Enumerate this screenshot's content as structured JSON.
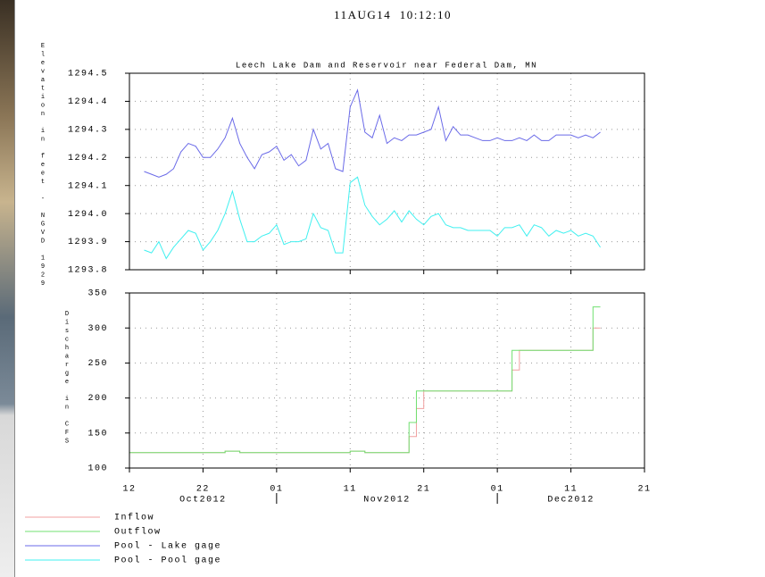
{
  "header": {
    "timestamp": "11AUG14  10:12:10"
  },
  "chart_data": [
    {
      "type": "line",
      "title": "Leech Lake Dam and Reservoir near Federal Dam, MN",
      "y_label": "Elevation in feet - NGVD 1929",
      "x": [
        "2012-10-14",
        "2012-10-15",
        "2012-10-16",
        "2012-10-17",
        "2012-10-18",
        "2012-10-19",
        "2012-10-20",
        "2012-10-21",
        "2012-10-22",
        "2012-10-23",
        "2012-10-24",
        "2012-10-25",
        "2012-10-26",
        "2012-10-27",
        "2012-10-28",
        "2012-10-29",
        "2012-10-30",
        "2012-10-31",
        "2012-11-01",
        "2012-11-02",
        "2012-11-03",
        "2012-11-04",
        "2012-11-05",
        "2012-11-06",
        "2012-11-07",
        "2012-11-08",
        "2012-11-09",
        "2012-11-10",
        "2012-11-11",
        "2012-11-12",
        "2012-11-13",
        "2012-11-14",
        "2012-11-15",
        "2012-11-16",
        "2012-11-17",
        "2012-11-18",
        "2012-11-19",
        "2012-11-20",
        "2012-11-21",
        "2012-11-22",
        "2012-11-23",
        "2012-11-24",
        "2012-11-25",
        "2012-11-26",
        "2012-11-27",
        "2012-11-28",
        "2012-11-29",
        "2012-11-30",
        "2012-12-01",
        "2012-12-02",
        "2012-12-03",
        "2012-12-04",
        "2012-12-05",
        "2012-12-06",
        "2012-12-07",
        "2012-12-08",
        "2012-12-09",
        "2012-12-10",
        "2012-12-11",
        "2012-12-12",
        "2012-12-13",
        "2012-12-14",
        "2012-12-15"
      ],
      "series": [
        {
          "name": "Pool - Lake gage",
          "color": "#6a6ae8",
          "values": [
            1294.15,
            1294.14,
            1294.13,
            1294.14,
            1294.16,
            1294.22,
            1294.25,
            1294.24,
            1294.2,
            1294.2,
            1294.23,
            1294.27,
            1294.34,
            1294.25,
            1294.2,
            1294.16,
            1294.21,
            1294.22,
            1294.24,
            1294.19,
            1294.21,
            1294.17,
            1294.19,
            1294.3,
            1294.23,
            1294.25,
            1294.16,
            1294.15,
            1294.38,
            1294.44,
            1294.29,
            1294.27,
            1294.35,
            1294.25,
            1294.27,
            1294.26,
            1294.28,
            1294.28,
            1294.29,
            1294.3,
            1294.38,
            1294.26,
            1294.31,
            1294.28,
            1294.28,
            1294.27,
            1294.26,
            1294.26,
            1294.27,
            1294.26,
            1294.26,
            1294.27,
            1294.26,
            1294.28,
            1294.26,
            1294.26,
            1294.28,
            1294.28,
            1294.28,
            1294.27,
            1294.28,
            1294.27,
            1294.29
          ]
        },
        {
          "name": "Pool - Pool gage",
          "color": "#40f0f0",
          "values": [
            1293.87,
            1293.86,
            1293.9,
            1293.84,
            1293.88,
            1293.91,
            1293.94,
            1293.93,
            1293.87,
            1293.9,
            1293.94,
            1294.0,
            1294.08,
            1293.98,
            1293.9,
            1293.9,
            1293.92,
            1293.93,
            1293.96,
            1293.89,
            1293.9,
            1293.9,
            1293.91,
            1294.0,
            1293.95,
            1293.94,
            1293.86,
            1293.86,
            1294.11,
            1294.13,
            1294.03,
            1293.99,
            1293.96,
            1293.98,
            1294.01,
            1293.97,
            1294.01,
            1293.98,
            1293.96,
            1293.99,
            1294.0,
            1293.96,
            1293.95,
            1293.95,
            1293.94,
            1293.94,
            1293.94,
            1293.94,
            1293.92,
            1293.95,
            1293.95,
            1293.96,
            1293.92,
            1293.96,
            1293.95,
            1293.92,
            1293.94,
            1293.93,
            1293.94,
            1293.92,
            1293.93,
            1293.92,
            1293.88
          ]
        }
      ],
      "xlim": [
        "2012-10-12",
        "2012-12-21"
      ],
      "xticks": [
        "2012-10-22",
        "2012-11-01",
        "2012-11-11",
        "2012-11-21",
        "2012-12-01",
        "2012-12-11"
      ],
      "ylim": [
        1293.8,
        1294.5
      ],
      "yticks": [
        1293.8,
        {
          "value": 1293.9,
          "label": "1293.9"
        },
        {
          "value": 1294.0,
          "label": "1294.0"
        },
        1294.1,
        1294.2,
        1294.3,
        1294.4,
        1294.5
      ],
      "grid": true
    },
    {
      "type": "step",
      "y_label": "Discharge in CFS",
      "x": [
        "2012-10-12",
        "2012-10-13",
        "2012-10-14",
        "2012-10-15",
        "2012-10-16",
        "2012-10-17",
        "2012-10-18",
        "2012-10-19",
        "2012-10-20",
        "2012-10-21",
        "2012-10-22",
        "2012-10-23",
        "2012-10-24",
        "2012-10-25",
        "2012-10-26",
        "2012-10-27",
        "2012-10-28",
        "2012-10-29",
        "2012-10-30",
        "2012-10-31",
        "2012-11-01",
        "2012-11-02",
        "2012-11-03",
        "2012-11-04",
        "2012-11-05",
        "2012-11-06",
        "2012-11-07",
        "2012-11-08",
        "2012-11-09",
        "2012-11-10",
        "2012-11-11",
        "2012-11-12",
        "2012-11-13",
        "2012-11-14",
        "2012-11-15",
        "2012-11-16",
        "2012-11-17",
        "2012-11-18",
        "2012-11-19",
        "2012-11-20",
        "2012-11-21",
        "2012-11-22",
        "2012-11-23",
        "2012-11-24",
        "2012-11-25",
        "2012-11-26",
        "2012-11-27",
        "2012-11-28",
        "2012-11-29",
        "2012-11-30",
        "2012-12-01",
        "2012-12-02",
        "2012-12-03",
        "2012-12-04",
        "2012-12-05",
        "2012-12-06",
        "2012-12-07",
        "2012-12-08",
        "2012-12-09",
        "2012-12-10",
        "2012-12-11",
        "2012-12-12",
        "2012-12-13",
        "2012-12-14",
        "2012-12-15"
      ],
      "series": [
        {
          "name": "Inflow",
          "color": "#f0a0a0",
          "values": [
            122,
            122,
            122,
            122,
            122,
            122,
            122,
            122,
            122,
            122,
            122,
            122,
            122,
            124,
            124,
            122,
            122,
            122,
            122,
            122,
            122,
            122,
            122,
            122,
            122,
            122,
            122,
            122,
            122,
            122,
            124,
            124,
            122,
            122,
            122,
            122,
            122,
            122,
            145,
            185,
            210,
            210,
            210,
            210,
            210,
            210,
            210,
            210,
            210,
            210,
            210,
            210,
            240,
            268,
            268,
            268,
            268,
            268,
            268,
            268,
            268,
            268,
            268,
            300,
            300
          ]
        },
        {
          "name": "Outflow",
          "color": "#70e070",
          "values": [
            122,
            122,
            122,
            122,
            122,
            122,
            122,
            122,
            122,
            122,
            122,
            122,
            122,
            124,
            124,
            122,
            122,
            122,
            122,
            122,
            122,
            122,
            122,
            122,
            122,
            122,
            122,
            122,
            122,
            122,
            124,
            124,
            122,
            122,
            122,
            122,
            122,
            122,
            165,
            210,
            210,
            210,
            210,
            210,
            210,
            210,
            210,
            210,
            210,
            210,
            210,
            210,
            268,
            268,
            268,
            268,
            268,
            268,
            268,
            268,
            268,
            268,
            268,
            330,
            330
          ]
        }
      ],
      "xlim": [
        "2012-10-12",
        "2012-12-21"
      ],
      "xticks": [
        {
          "value": "2012-10-12",
          "label": "12"
        },
        {
          "value": "2012-10-22",
          "label": "22"
        },
        {
          "value": "2012-11-01",
          "label": "01"
        },
        {
          "value": "2012-11-11",
          "label": "11"
        },
        {
          "value": "2012-11-21",
          "label": "21"
        },
        {
          "value": "2012-12-01",
          "label": "01"
        },
        {
          "value": "2012-12-11",
          "label": "11"
        },
        {
          "value": "2012-12-21",
          "label": "21"
        }
      ],
      "xticks2": [
        {
          "value": "2012-10",
          "label": "Oct2012"
        },
        {
          "value": "2012-11",
          "label": "Nov2012"
        },
        {
          "value": "2012-12",
          "label": "Dec2012"
        }
      ],
      "ylim": [
        100,
        350
      ],
      "yticks": [
        100,
        150,
        200,
        250,
        300,
        350
      ],
      "grid": true
    }
  ]
}
